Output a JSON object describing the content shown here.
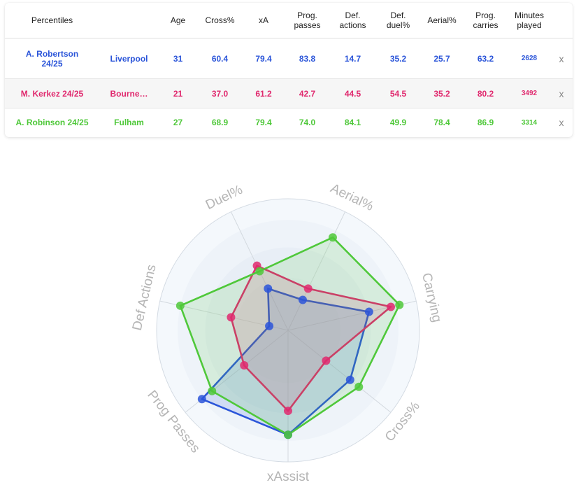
{
  "table": {
    "headers": {
      "percentiles": "Percentiles",
      "age": "Age",
      "cross": "Cross%",
      "xa": "xA",
      "prog_passes": [
        "Prog.",
        "passes"
      ],
      "def_actions": [
        "Def.",
        "actions"
      ],
      "def_duel": [
        "Def.",
        "duel%"
      ],
      "aerial": "Aerial%",
      "prog_carries": [
        "Prog.",
        "carries"
      ],
      "minutes": [
        "Minutes",
        "played"
      ]
    },
    "rows": [
      {
        "player": [
          "A. Robertson",
          "24/25"
        ],
        "team": "Liverpool",
        "age": "31",
        "cross": "60.4",
        "xa": "79.4",
        "prog_passes": "83.8",
        "def_actions": "14.7",
        "def_duel": "35.2",
        "aerial": "25.7",
        "prog_carries": "63.2",
        "minutes": "2628",
        "remove": "x",
        "color": "#2b55d9"
      },
      {
        "player": [
          "M. Kerkez 24/25"
        ],
        "team": "Bourne…",
        "age": "21",
        "cross": "37.0",
        "xa": "61.2",
        "prog_passes": "42.7",
        "def_actions": "44.5",
        "def_duel": "54.5",
        "aerial": "35.2",
        "prog_carries": "80.2",
        "minutes": "3492",
        "remove": "x",
        "color": "#e0296e"
      },
      {
        "player": [
          "A. Robinson 24/25"
        ],
        "team": "Fulham",
        "age": "27",
        "cross": "68.9",
        "xa": "79.4",
        "prog_passes": "74.0",
        "def_actions": "84.1",
        "def_duel": "49.9",
        "aerial": "78.4",
        "prog_carries": "86.9",
        "minutes": "3314",
        "remove": "x",
        "color": "#4fc83a"
      }
    ]
  },
  "chart_data": {
    "type": "radar",
    "axes": [
      "Aerial%",
      "Carrying",
      "Cross%",
      "xAssist",
      "Prog Passes",
      "Def Actions",
      "Duel%"
    ],
    "range": [
      0,
      100
    ],
    "series": [
      {
        "name": "A. Robertson 24/25",
        "color": "#2b55d9",
        "values": [
          25.7,
          63.2,
          60.4,
          79.4,
          83.8,
          14.7,
          35.2
        ]
      },
      {
        "name": "M. Kerkez 24/25",
        "color": "#e0296e",
        "values": [
          35.2,
          80.2,
          37.0,
          61.2,
          42.7,
          44.5,
          54.5
        ]
      },
      {
        "name": "A. Robinson 24/25",
        "color": "#4fc83a",
        "values": [
          78.4,
          86.9,
          68.9,
          79.4,
          74.0,
          84.1,
          49.9
        ]
      }
    ]
  }
}
